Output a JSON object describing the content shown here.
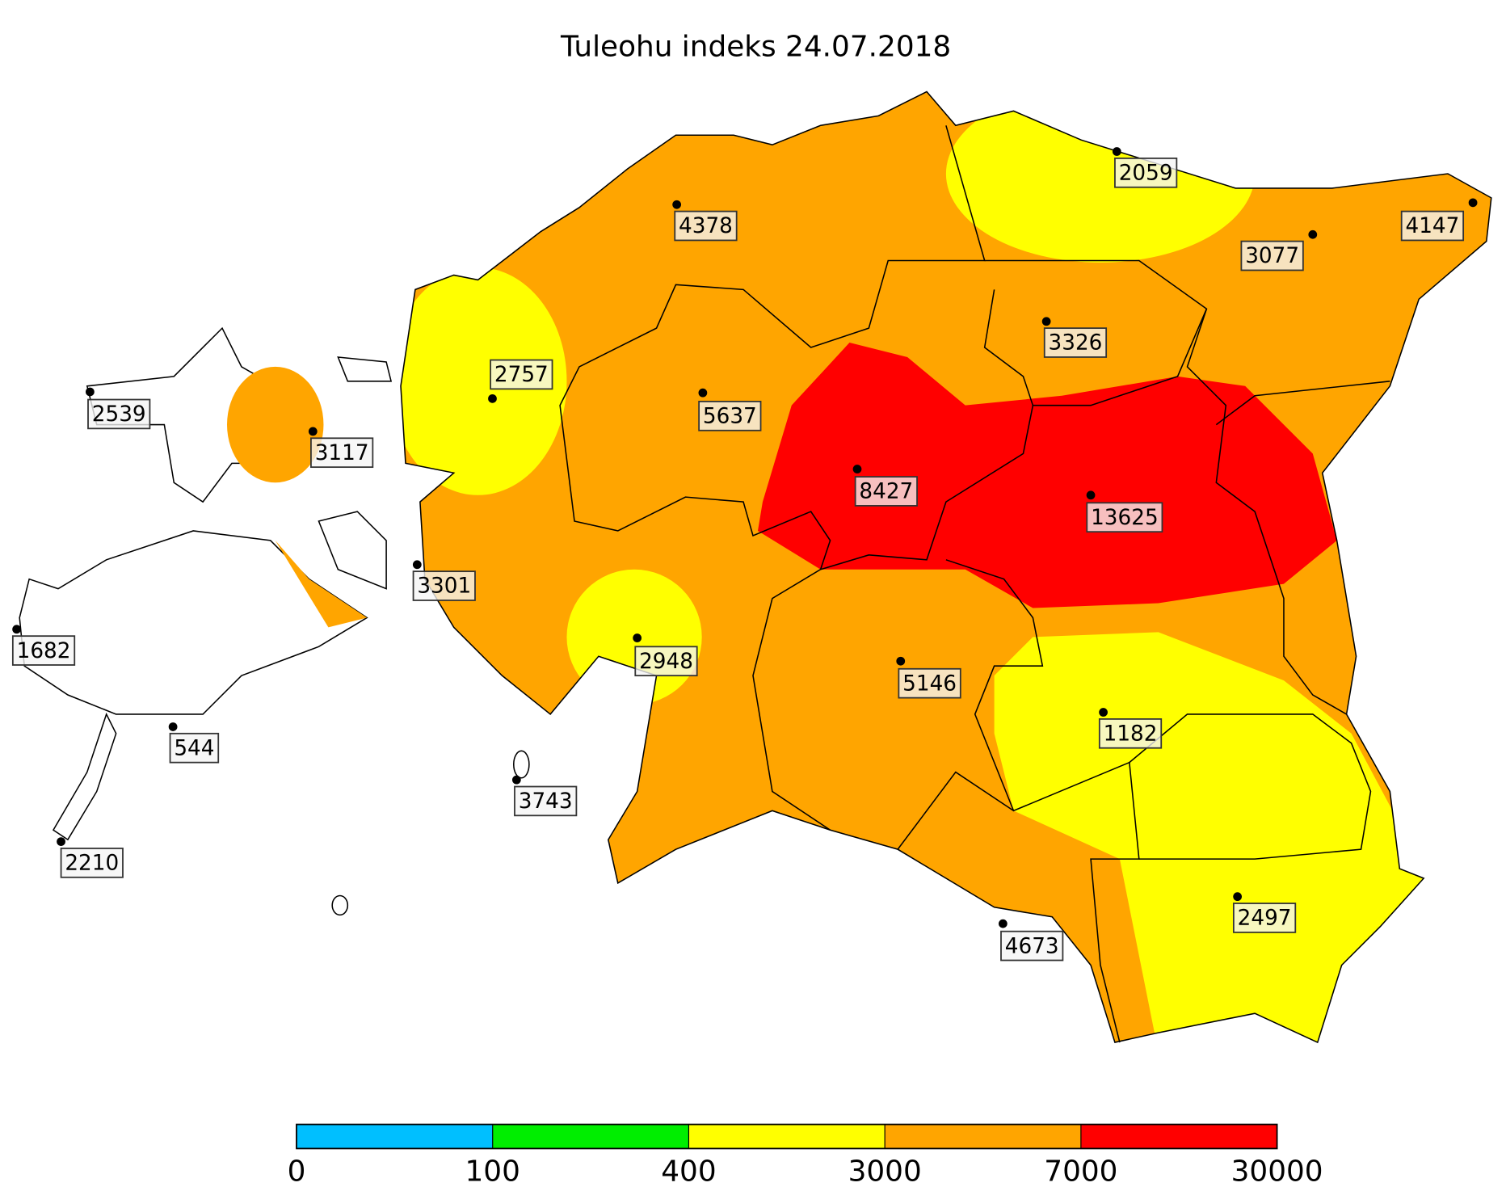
{
  "title": "Tuleohu indeks 24.07.2018",
  "stations": [
    2059,
    4378,
    3077,
    4147,
    3326,
    2757,
    2539,
    5637,
    3117,
    8427,
    13625,
    3301,
    1682,
    2948,
    5146,
    1182,
    544,
    3743,
    2210,
    4673,
    2497
  ],
  "colorbar": {
    "ticks": [
      0,
      100,
      400,
      3000,
      7000,
      30000
    ],
    "colors": [
      "#00bfff",
      "#00ee00",
      "#ffff00",
      "#ffa500",
      "#ff0000"
    ]
  }
}
